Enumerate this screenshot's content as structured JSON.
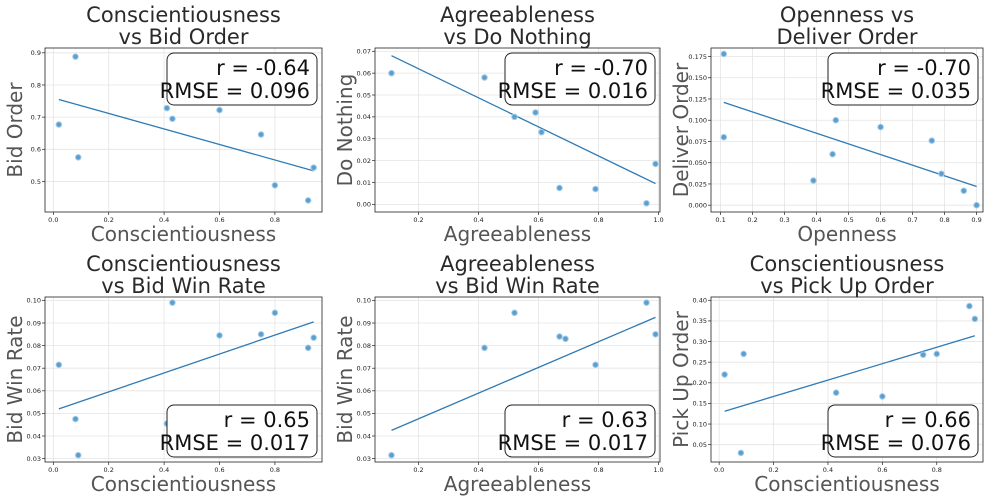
{
  "chart_data": [
    {
      "type": "scatter",
      "title": [
        "Conscientiousness",
        "vs Bid Order"
      ],
      "xlabel": "Conscientiousness",
      "ylabel": "Bid Order",
      "xlim": [
        -0.03,
        0.97
      ],
      "ylim": [
        0.405,
        0.915
      ],
      "xticks": [
        0.0,
        0.2,
        0.4,
        0.6,
        0.8
      ],
      "xtick_labels": [
        "0.0",
        "0.2",
        "0.4",
        "0.6",
        "0.8"
      ],
      "yticks": [
        0.5,
        0.6,
        0.7,
        0.8,
        0.9
      ],
      "ytick_labels": [
        "0.5",
        "0.6",
        "0.7",
        "0.8",
        "0.9"
      ],
      "points": [
        [
          0.02,
          0.677
        ],
        [
          0.08,
          0.888
        ],
        [
          0.09,
          0.575
        ],
        [
          0.41,
          0.728
        ],
        [
          0.43,
          0.695
        ],
        [
          0.6,
          0.722
        ],
        [
          0.75,
          0.646
        ],
        [
          0.8,
          0.488
        ],
        [
          0.92,
          0.441
        ],
        [
          0.94,
          0.543
        ]
      ],
      "fit": [
        [
          0.02,
          0.755
        ],
        [
          0.94,
          0.533
        ]
      ],
      "stats": [
        "r = -0.64",
        "RMSE = 0.096"
      ],
      "stats_position": "top-right",
      "grid": true
    },
    {
      "type": "scatter",
      "title": [
        "Agreeableness",
        "vs Do Nothing"
      ],
      "xlabel": "Agreeableness",
      "ylabel": "Do Nothing",
      "xlim": [
        0.055,
        1.005
      ],
      "ylim": [
        -0.0035,
        0.0715
      ],
      "xticks": [
        0.2,
        0.4,
        0.6,
        0.8,
        1.0
      ],
      "xtick_labels": [
        "0.2",
        "0.4",
        "0.6",
        "0.8",
        "1.0"
      ],
      "yticks": [
        0.0,
        0.01,
        0.02,
        0.03,
        0.04,
        0.05,
        0.06,
        0.07
      ],
      "ytick_labels": [
        "0.00",
        "0.01",
        "0.02",
        "0.03",
        "0.04",
        "0.05",
        "0.06",
        "0.07"
      ],
      "points": [
        [
          0.11,
          0.06
        ],
        [
          0.42,
          0.058
        ],
        [
          0.52,
          0.04
        ],
        [
          0.59,
          0.042
        ],
        [
          0.61,
          0.033
        ],
        [
          0.67,
          0.0075
        ],
        [
          0.79,
          0.007
        ],
        [
          0.96,
          0.0005
        ],
        [
          0.99,
          0.0185
        ]
      ],
      "fit": [
        [
          0.11,
          0.068
        ],
        [
          0.99,
          0.0095
        ]
      ],
      "stats": [
        "r = -0.70",
        "RMSE = 0.016"
      ],
      "stats_position": "top-right",
      "grid": true
    },
    {
      "type": "scatter",
      "title": [
        "Openness vs",
        "Deliver Order"
      ],
      "xlabel": "Openness",
      "ylabel": "Deliver Order",
      "xlim": [
        0.07,
        0.92
      ],
      "ylim": [
        -0.008,
        0.185
      ],
      "xticks": [
        0.1,
        0.2,
        0.3,
        0.4,
        0.5,
        0.6,
        0.7,
        0.8,
        0.9
      ],
      "xtick_labels": [
        "0.1",
        "0.2",
        "0.3",
        "0.4",
        "0.5",
        "0.6",
        "0.7",
        "0.8",
        "0.9"
      ],
      "yticks": [
        0.0,
        0.025,
        0.05,
        0.075,
        0.1,
        0.125,
        0.15,
        0.175
      ],
      "ytick_labels": [
        "0.000",
        "0.025",
        "0.050",
        "0.075",
        "0.100",
        "0.125",
        "0.150",
        "0.175"
      ],
      "points": [
        [
          0.11,
          0.178
        ],
        [
          0.11,
          0.08
        ],
        [
          0.39,
          0.029
        ],
        [
          0.45,
          0.06
        ],
        [
          0.46,
          0.1
        ],
        [
          0.6,
          0.092
        ],
        [
          0.76,
          0.076
        ],
        [
          0.79,
          0.037
        ],
        [
          0.86,
          0.017
        ],
        [
          0.9,
          0.0
        ]
      ],
      "fit": [
        [
          0.11,
          0.121
        ],
        [
          0.9,
          0.022
        ]
      ],
      "stats": [
        "r = -0.70",
        "RMSE = 0.035"
      ],
      "stats_position": "top-right",
      "grid": true
    },
    {
      "type": "scatter",
      "title": [
        "Conscientiousness",
        "vs Bid Win Rate"
      ],
      "xlabel": "Conscientiousness",
      "ylabel": "Bid Win Rate",
      "xlim": [
        -0.03,
        0.97
      ],
      "ylim": [
        0.0285,
        0.1015
      ],
      "xticks": [
        0.0,
        0.2,
        0.4,
        0.6,
        0.8
      ],
      "xtick_labels": [
        "0.0",
        "0.2",
        "0.4",
        "0.6",
        "0.8"
      ],
      "yticks": [
        0.03,
        0.04,
        0.05,
        0.06,
        0.07,
        0.08,
        0.09,
        0.1
      ],
      "ytick_labels": [
        "0.03",
        "0.04",
        "0.05",
        "0.06",
        "0.07",
        "0.08",
        "0.09",
        "0.10"
      ],
      "points": [
        [
          0.02,
          0.0715
        ],
        [
          0.08,
          0.0475
        ],
        [
          0.09,
          0.0315
        ],
        [
          0.41,
          0.0455
        ],
        [
          0.43,
          0.099
        ],
        [
          0.6,
          0.0845
        ],
        [
          0.75,
          0.085
        ],
        [
          0.8,
          0.0945
        ],
        [
          0.92,
          0.079
        ],
        [
          0.94,
          0.0835
        ]
      ],
      "fit": [
        [
          0.02,
          0.052
        ],
        [
          0.94,
          0.0905
        ]
      ],
      "stats": [
        "r = 0.65",
        "RMSE = 0.017"
      ],
      "stats_position": "bottom-right",
      "grid": true
    },
    {
      "type": "scatter",
      "title": [
        "Agreeableness",
        "vs Bid Win Rate"
      ],
      "xlabel": "Agreeableness",
      "ylabel": "Bid Win Rate",
      "xlim": [
        0.055,
        1.005
      ],
      "ylim": [
        0.0285,
        0.1015
      ],
      "xticks": [
        0.2,
        0.4,
        0.6,
        0.8,
        1.0
      ],
      "xtick_labels": [
        "0.2",
        "0.4",
        "0.6",
        "0.8",
        "1.0"
      ],
      "yticks": [
        0.03,
        0.04,
        0.05,
        0.06,
        0.07,
        0.08,
        0.09,
        0.1
      ],
      "ytick_labels": [
        "0.03",
        "0.04",
        "0.05",
        "0.06",
        "0.07",
        "0.08",
        "0.09",
        "0.10"
      ],
      "points": [
        [
          0.11,
          0.0315
        ],
        [
          0.42,
          0.079
        ],
        [
          0.52,
          0.0945
        ],
        [
          0.67,
          0.084
        ],
        [
          0.69,
          0.083
        ],
        [
          0.79,
          0.0715
        ],
        [
          0.96,
          0.099
        ],
        [
          0.99,
          0.085
        ]
      ],
      "fit": [
        [
          0.11,
          0.0425
        ],
        [
          0.99,
          0.0925
        ]
      ],
      "stats": [
        "r = 0.63",
        "RMSE = 0.017"
      ],
      "stats_position": "bottom-right",
      "grid": true
    },
    {
      "type": "scatter",
      "title": [
        "Conscientiousness",
        "vs Pick Up Order"
      ],
      "xlabel": "Conscientiousness",
      "ylabel": "Pick Up Order",
      "xlim": [
        -0.03,
        0.97
      ],
      "ylim": [
        0.008,
        0.408
      ],
      "xticks": [
        0.0,
        0.2,
        0.4,
        0.6,
        0.8
      ],
      "xtick_labels": [
        "0.0",
        "0.2",
        "0.4",
        "0.6",
        "0.8"
      ],
      "yticks": [
        0.05,
        0.1,
        0.15,
        0.2,
        0.25,
        0.3,
        0.35,
        0.4
      ],
      "ytick_labels": [
        "0.05",
        "0.10",
        "0.15",
        "0.20",
        "0.25",
        "0.30",
        "0.35",
        "0.40"
      ],
      "points": [
        [
          0.02,
          0.22
        ],
        [
          0.08,
          0.03
        ],
        [
          0.09,
          0.27
        ],
        [
          0.41,
          0.137
        ],
        [
          0.43,
          0.176
        ],
        [
          0.6,
          0.167
        ],
        [
          0.75,
          0.268
        ],
        [
          0.8,
          0.27
        ],
        [
          0.92,
          0.386
        ],
        [
          0.94,
          0.355
        ]
      ],
      "fit": [
        [
          0.02,
          0.131
        ],
        [
          0.94,
          0.314
        ]
      ],
      "stats": [
        "r = 0.66",
        "RMSE = 0.076"
      ],
      "stats_position": "bottom-right",
      "grid": true
    }
  ]
}
